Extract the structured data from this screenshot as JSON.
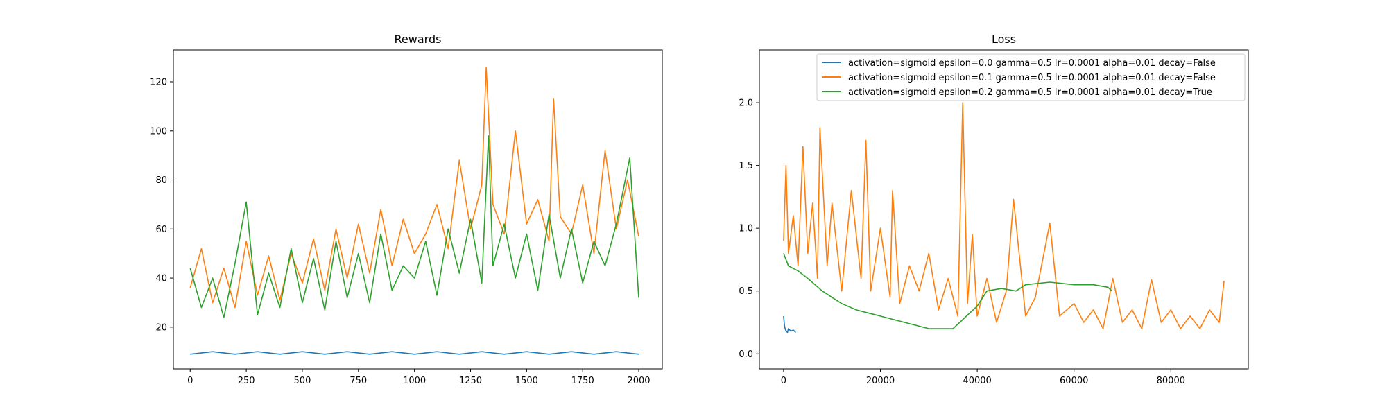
{
  "chart_data": [
    {
      "type": "line",
      "title": "Rewards",
      "xlabel": "",
      "ylabel": "",
      "xlim": [
        -75,
        2105
      ],
      "ylim": [
        3,
        133
      ],
      "xticks": [
        0,
        250,
        500,
        750,
        1000,
        1250,
        1500,
        1750,
        2000
      ],
      "yticks": [
        20,
        40,
        60,
        80,
        100,
        120
      ],
      "grid": false,
      "legend": false,
      "series": [
        {
          "color": "#1f77b4",
          "x": [
            0,
            100,
            200,
            300,
            400,
            500,
            600,
            700,
            800,
            900,
            1000,
            1100,
            1200,
            1300,
            1400,
            1500,
            1600,
            1700,
            1800,
            1900,
            2000
          ],
          "y": [
            9,
            10,
            9,
            10,
            9,
            10,
            9,
            10,
            9,
            10,
            9,
            10,
            9,
            10,
            9,
            10,
            9,
            10,
            9,
            10,
            9
          ]
        },
        {
          "color": "#ff7f0e",
          "x": [
            0,
            50,
            100,
            150,
            200,
            250,
            300,
            350,
            400,
            450,
            500,
            550,
            600,
            650,
            700,
            750,
            800,
            850,
            900,
            950,
            1000,
            1050,
            1100,
            1150,
            1200,
            1250,
            1300,
            1320,
            1350,
            1400,
            1450,
            1500,
            1550,
            1600,
            1620,
            1650,
            1700,
            1750,
            1800,
            1850,
            1900,
            1950,
            2000
          ],
          "y": [
            36,
            52,
            30,
            44,
            28,
            55,
            33,
            49,
            31,
            50,
            38,
            56,
            35,
            60,
            40,
            62,
            42,
            68,
            45,
            64,
            50,
            58,
            70,
            52,
            88,
            60,
            78,
            126,
            70,
            58,
            100,
            62,
            72,
            55,
            113,
            65,
            58,
            78,
            50,
            92,
            60,
            80,
            57
          ]
        },
        {
          "color": "#2ca02c",
          "x": [
            0,
            50,
            100,
            150,
            200,
            250,
            300,
            350,
            400,
            450,
            500,
            550,
            600,
            650,
            700,
            750,
            800,
            850,
            900,
            950,
            1000,
            1050,
            1100,
            1150,
            1200,
            1250,
            1300,
            1330,
            1350,
            1400,
            1450,
            1500,
            1550,
            1600,
            1650,
            1700,
            1750,
            1800,
            1850,
            1900,
            1960,
            2000
          ],
          "y": [
            44,
            28,
            40,
            24,
            46,
            71,
            25,
            42,
            28,
            52,
            30,
            48,
            27,
            55,
            32,
            50,
            30,
            58,
            35,
            45,
            40,
            55,
            33,
            60,
            42,
            64,
            38,
            98,
            45,
            62,
            40,
            58,
            35,
            66,
            40,
            60,
            38,
            55,
            45,
            62,
            89,
            32
          ]
        }
      ]
    },
    {
      "type": "line",
      "title": "Loss",
      "xlabel": "",
      "ylabel": "",
      "xlim": [
        -5000,
        96000
      ],
      "ylim": [
        -0.12,
        2.42
      ],
      "xticks": [
        0,
        20000,
        40000,
        60000,
        80000
      ],
      "yticks": [
        0.0,
        0.5,
        1.0,
        1.5,
        2.0
      ],
      "ytick_labels": [
        "0.0",
        "0.5",
        "1.0",
        "1.5",
        "2.0"
      ],
      "grid": false,
      "legend": true,
      "legend_loc": "upper right",
      "series": [
        {
          "name": "activation=sigmoid epsilon=0.0 gamma=0.5 lr=0.0001 alpha=0.01 decay=False",
          "color": "#1f77b4",
          "x": [
            0,
            200,
            400,
            600,
            800,
            1000,
            1500,
            2000,
            2500
          ],
          "y": [
            0.3,
            0.22,
            0.19,
            0.18,
            0.17,
            0.2,
            0.18,
            0.19,
            0.17
          ]
        },
        {
          "name": "activation=sigmoid epsilon=0.1 gamma=0.5 lr=0.0001 alpha=0.01 decay=False",
          "color": "#ff7f0e",
          "x": [
            0,
            500,
            1000,
            2000,
            3000,
            4000,
            5000,
            6000,
            7000,
            7500,
            9000,
            10000,
            12000,
            14000,
            16000,
            17000,
            18000,
            20000,
            22000,
            22500,
            24000,
            26000,
            28000,
            30000,
            32000,
            34000,
            36000,
            37000,
            38000,
            39000,
            40000,
            42000,
            44000,
            46000,
            47500,
            50000,
            52000,
            55000,
            57000,
            60000,
            62000,
            64000,
            66000,
            68000,
            70000,
            72000,
            74000,
            76000,
            78000,
            80000,
            82000,
            84000,
            86000,
            88000,
            90000,
            91000
          ],
          "y": [
            0.9,
            1.5,
            0.8,
            1.1,
            0.7,
            1.65,
            0.8,
            1.2,
            0.6,
            1.8,
            0.7,
            1.2,
            0.5,
            1.3,
            0.6,
            1.7,
            0.5,
            1.0,
            0.45,
            1.3,
            0.4,
            0.7,
            0.5,
            0.8,
            0.35,
            0.6,
            0.3,
            2.0,
            0.4,
            0.95,
            0.3,
            0.6,
            0.25,
            0.5,
            1.23,
            0.3,
            0.45,
            1.04,
            0.3,
            0.4,
            0.25,
            0.35,
            0.2,
            0.6,
            0.25,
            0.35,
            0.2,
            0.59,
            0.25,
            0.35,
            0.2,
            0.3,
            0.2,
            0.35,
            0.25,
            0.58
          ]
        },
        {
          "name": "activation=sigmoid epsilon=0.2 gamma=0.5 lr=0.0001 alpha=0.01 decay=True",
          "color": "#2ca02c",
          "x": [
            0,
            1000,
            3000,
            5000,
            8000,
            10000,
            12000,
            15000,
            18000,
            20000,
            25000,
            30000,
            35000,
            40000,
            42000,
            45000,
            48000,
            50000,
            55000,
            60000,
            64000,
            67000,
            67800
          ],
          "y": [
            0.8,
            0.7,
            0.66,
            0.6,
            0.5,
            0.45,
            0.4,
            0.35,
            0.32,
            0.3,
            0.25,
            0.2,
            0.2,
            0.38,
            0.5,
            0.52,
            0.5,
            0.55,
            0.57,
            0.55,
            0.55,
            0.53,
            0.5
          ]
        }
      ]
    }
  ]
}
